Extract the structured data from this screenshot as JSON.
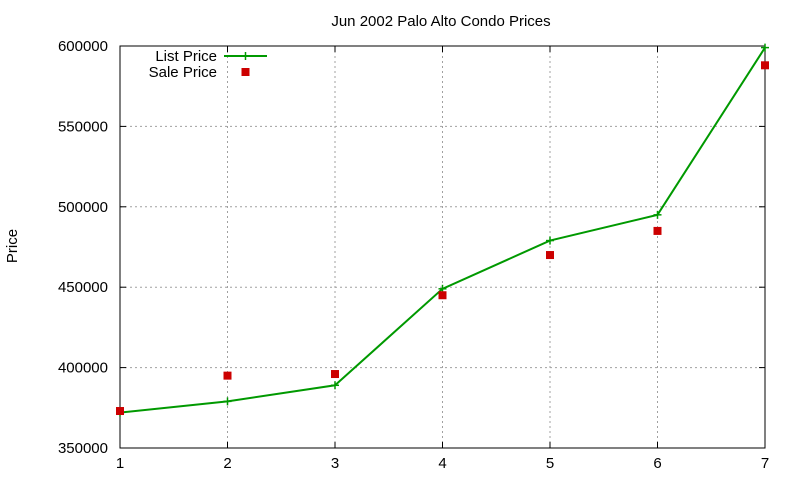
{
  "chart_data": {
    "type": "line",
    "title": "Jun 2002 Palo Alto Condo Prices",
    "xlabel": "",
    "ylabel": "Price",
    "x": [
      1,
      2,
      3,
      4,
      5,
      6,
      7
    ],
    "xlim": [
      1,
      7
    ],
    "ylim": [
      350000,
      600000
    ],
    "xticks": [
      "1",
      "2",
      "3",
      "4",
      "5",
      "6",
      "7"
    ],
    "yticks": [
      350000,
      400000,
      450000,
      500000,
      550000,
      600000
    ],
    "ytick_labels": [
      "350000",
      "400000",
      "450000",
      "500000",
      "550000",
      "600000"
    ],
    "grid": true,
    "legend_position": "top-left",
    "series": [
      {
        "name": "List Price",
        "style": "linespoints",
        "marker": "plus",
        "color": "#009900",
        "values": [
          372000,
          379000,
          389000,
          449000,
          479000,
          495000,
          599000
        ]
      },
      {
        "name": "Sale Price",
        "style": "points",
        "marker": "square",
        "color": "#cc0000",
        "values": [
          373000,
          395000,
          396000,
          445000,
          470000,
          485000,
          588000
        ]
      }
    ]
  }
}
